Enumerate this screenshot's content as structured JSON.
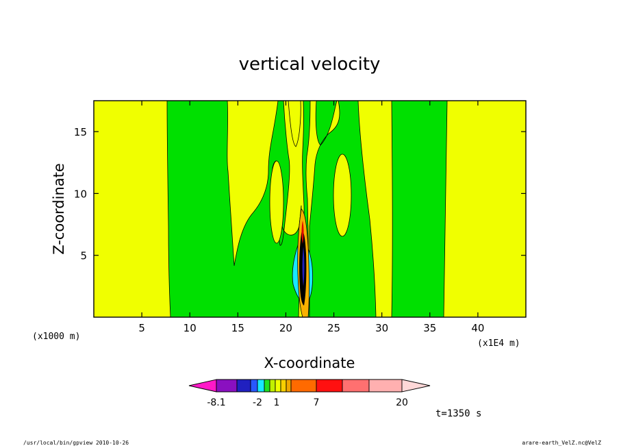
{
  "chart_data": {
    "type": "contour",
    "title": "vertical velocity",
    "xlabel": "X-coordinate",
    "ylabel": "Z-coordinate",
    "x_unit_left": "(x1000 m)",
    "x_unit_right": "(x1E4 m)",
    "xlim": [
      0,
      45
    ],
    "ylim": [
      0,
      17.5
    ],
    "x_ticks": [
      "5",
      "10",
      "15",
      "20",
      "25",
      "30",
      "35",
      "40"
    ],
    "x_tick_values": [
      5,
      10,
      15,
      20,
      25,
      30,
      35,
      40
    ],
    "y_ticks": [
      "5",
      "10",
      "15"
    ],
    "y_tick_values": [
      5,
      10,
      15
    ],
    "colorbar_labels": [
      "-8.1",
      "-2",
      "1",
      "7",
      "20"
    ],
    "colorbar_colors": [
      "#ff18c8",
      "#8a10c0",
      "#2020c0",
      "#2858ff",
      "#18e8ff",
      "#20e020",
      "#c0f000",
      "#f0ff00",
      "#f8d000",
      "#f0a800",
      "#ff6a00",
      "#ff1010",
      "#ff7070",
      "#ffb0b0",
      "#ffd8d8"
    ],
    "time_label": "t=1350 s",
    "colors": {
      "yellow": "#f0ff00",
      "green": "#00e000",
      "cyan": "#18e8ff",
      "black": "#000000"
    }
  },
  "footer": {
    "left": "/usr/local/bin/gpview  2010-10-26",
    "right": "arare-earth_VelZ.nc@VelZ"
  }
}
